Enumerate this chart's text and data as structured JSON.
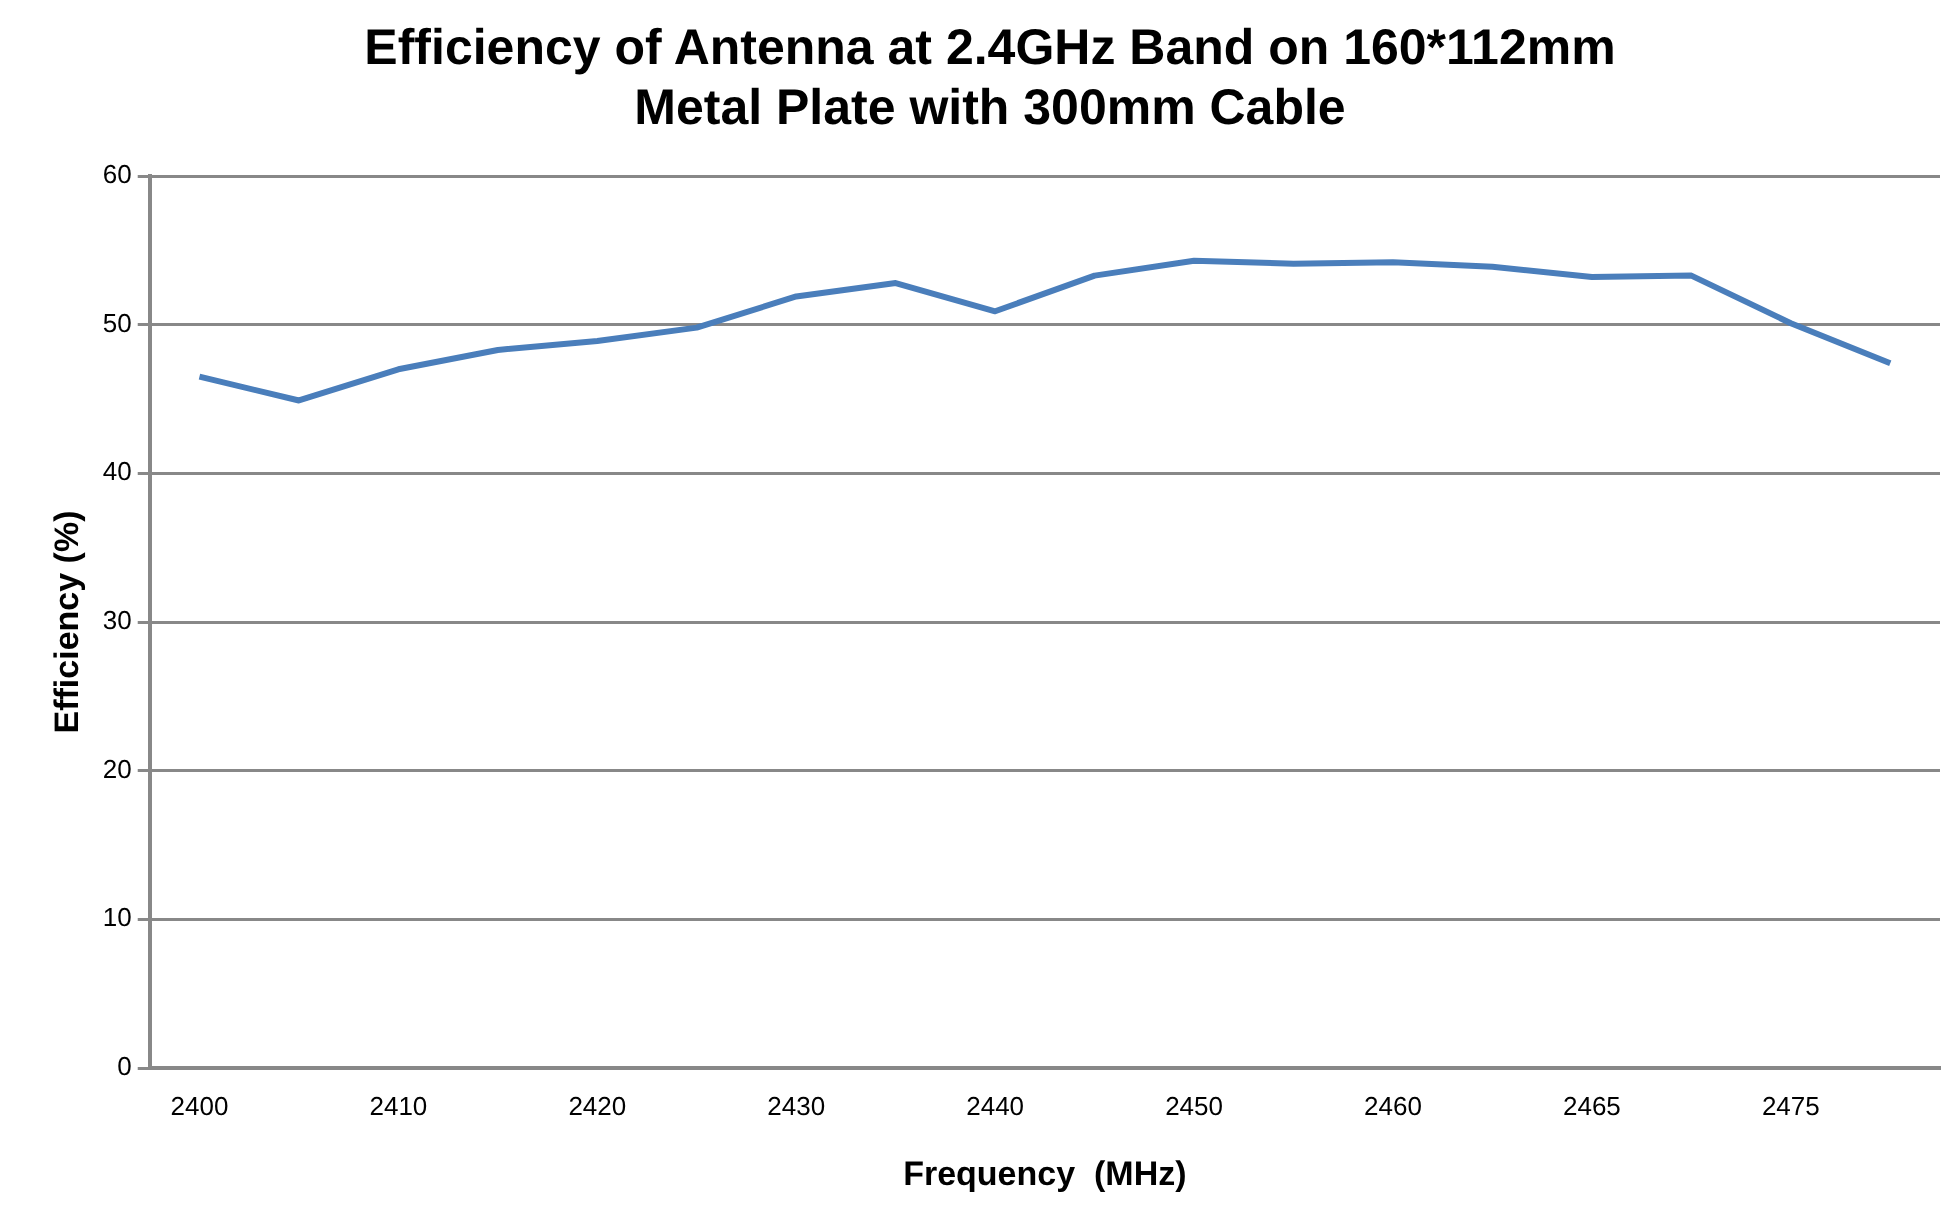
{
  "chart_data": {
    "type": "line",
    "title": "Efficiency of Antenna at 2.4GHz Band on 160*112mm Metal Plate with 300mm Cable",
    "xlabel": "Frequency  (MHz)",
    "ylabel": "Efficiency (%)",
    "categories": [
      "2400",
      null,
      "2410",
      null,
      "2420",
      null,
      "2430",
      null,
      "2440",
      null,
      "2450",
      null,
      "2460",
      null,
      "2465",
      null,
      "2475",
      null
    ],
    "series": [
      {
        "color": "#4a7ebb",
        "values": [
          46.5,
          44.9,
          47.0,
          48.3,
          48.9,
          49.8,
          51.9,
          52.8,
          50.9,
          53.3,
          54.3,
          54.1,
          54.2,
          53.9,
          53.2,
          53.3,
          50.1,
          47.4
        ]
      }
    ],
    "ylim": [
      0,
      60
    ],
    "yticks": [
      0,
      10,
      20,
      30,
      40,
      50,
      60
    ],
    "grid": "y",
    "legend": false,
    "marker": "none",
    "line_style": "solid"
  }
}
